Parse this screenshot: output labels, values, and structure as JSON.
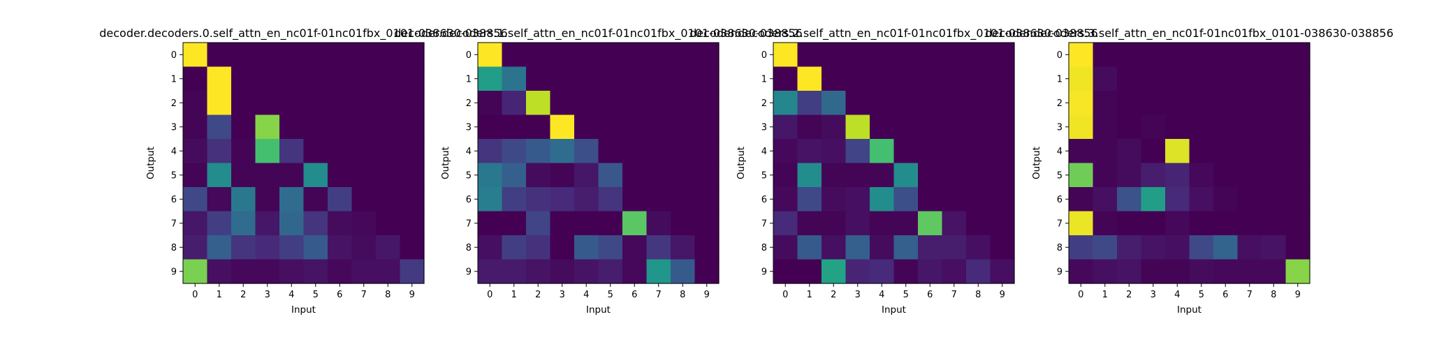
{
  "figure": {
    "background": "#ffffff",
    "colormap": "viridis"
  },
  "chart_data": [
    {
      "type": "heatmap",
      "title": "decoder.decoders.0.self_attn_en_nc01f-01nc01fbx_0101-038630-038856",
      "xlabel": "Input",
      "ylabel": "Output",
      "x_ticks": [
        "0",
        "1",
        "2",
        "3",
        "4",
        "5",
        "6",
        "7",
        "8",
        "9"
      ],
      "y_ticks": [
        "0",
        "1",
        "2",
        "3",
        "4",
        "5",
        "6",
        "7",
        "8",
        "9"
      ],
      "vmin": 0,
      "vmax": 1,
      "values": [
        [
          1.0,
          0.0,
          0.0,
          0.0,
          0.0,
          0.0,
          0.0,
          0.0,
          0.0,
          0.0
        ],
        [
          0.0,
          1.0,
          0.0,
          0.0,
          0.0,
          0.0,
          0.0,
          0.0,
          0.0,
          0.0
        ],
        [
          0.01,
          1.0,
          0.0,
          0.0,
          0.0,
          0.0,
          0.0,
          0.0,
          0.0,
          0.0
        ],
        [
          0.01,
          0.22,
          0.0,
          0.82,
          0.0,
          0.0,
          0.0,
          0.0,
          0.0,
          0.0
        ],
        [
          0.03,
          0.14,
          0.01,
          0.7,
          0.15,
          0.0,
          0.0,
          0.0,
          0.0,
          0.0
        ],
        [
          0.01,
          0.48,
          0.01,
          0.01,
          0.01,
          0.48,
          0.0,
          0.0,
          0.0,
          0.0
        ],
        [
          0.22,
          0.02,
          0.4,
          0.01,
          0.35,
          0.01,
          0.18,
          0.0,
          0.0,
          0.0
        ],
        [
          0.06,
          0.18,
          0.35,
          0.06,
          0.33,
          0.15,
          0.03,
          0.02,
          0.0,
          0.0
        ],
        [
          0.08,
          0.3,
          0.15,
          0.12,
          0.18,
          0.28,
          0.05,
          0.03,
          0.06,
          0.0
        ],
        [
          0.8,
          0.04,
          0.02,
          0.02,
          0.04,
          0.05,
          0.02,
          0.04,
          0.04,
          0.17
        ]
      ]
    },
    {
      "type": "heatmap",
      "title": "decoder.decoders.1.self_attn_en_nc01f-01nc01fbx_0101-038630-038856",
      "xlabel": "Input",
      "ylabel": "Output",
      "x_ticks": [
        "0",
        "1",
        "2",
        "3",
        "4",
        "5",
        "6",
        "7",
        "8",
        "9"
      ],
      "y_ticks": [
        "0",
        "1",
        "2",
        "3",
        "4",
        "5",
        "6",
        "7",
        "8",
        "9"
      ],
      "vmin": 0,
      "vmax": 1,
      "values": [
        [
          1.0,
          0.0,
          0.0,
          0.0,
          0.0,
          0.0,
          0.0,
          0.0,
          0.0,
          0.0
        ],
        [
          0.55,
          0.38,
          0.0,
          0.0,
          0.0,
          0.0,
          0.0,
          0.0,
          0.0,
          0.0
        ],
        [
          0.01,
          0.1,
          0.9,
          0.0,
          0.0,
          0.0,
          0.0,
          0.0,
          0.0,
          0.0
        ],
        [
          0.0,
          0.0,
          0.0,
          1.0,
          0.0,
          0.0,
          0.0,
          0.0,
          0.0,
          0.0
        ],
        [
          0.15,
          0.22,
          0.28,
          0.35,
          0.24,
          0.0,
          0.0,
          0.0,
          0.0,
          0.0
        ],
        [
          0.4,
          0.3,
          0.03,
          0.01,
          0.06,
          0.27,
          0.0,
          0.0,
          0.0,
          0.0
        ],
        [
          0.42,
          0.18,
          0.14,
          0.12,
          0.08,
          0.15,
          0.0,
          0.0,
          0.0,
          0.0
        ],
        [
          0.0,
          0.0,
          0.2,
          0.0,
          0.0,
          0.0,
          0.74,
          0.03,
          0.0,
          0.0
        ],
        [
          0.04,
          0.18,
          0.14,
          0.0,
          0.28,
          0.22,
          0.02,
          0.16,
          0.06,
          0.0
        ],
        [
          0.07,
          0.07,
          0.05,
          0.03,
          0.05,
          0.08,
          0.02,
          0.52,
          0.28,
          0.0
        ]
      ]
    },
    {
      "type": "heatmap",
      "title": "decoder.decoders.2.self_attn_en_nc01f-01nc01fbx_0101-038630-038856",
      "xlabel": "Input",
      "ylabel": "Output",
      "x_ticks": [
        "0",
        "1",
        "2",
        "3",
        "4",
        "5",
        "6",
        "7",
        "8",
        "9"
      ],
      "y_ticks": [
        "0",
        "1",
        "2",
        "3",
        "4",
        "5",
        "6",
        "7",
        "8",
        "9"
      ],
      "vmin": 0,
      "vmax": 1,
      "values": [
        [
          1.0,
          0.0,
          0.0,
          0.0,
          0.0,
          0.0,
          0.0,
          0.0,
          0.0,
          0.0
        ],
        [
          0.0,
          1.0,
          0.0,
          0.0,
          0.0,
          0.0,
          0.0,
          0.0,
          0.0,
          0.0
        ],
        [
          0.46,
          0.18,
          0.34,
          0.0,
          0.0,
          0.0,
          0.0,
          0.0,
          0.0,
          0.0
        ],
        [
          0.06,
          0.01,
          0.03,
          0.9,
          0.0,
          0.0,
          0.0,
          0.0,
          0.0,
          0.0
        ],
        [
          0.02,
          0.05,
          0.04,
          0.2,
          0.7,
          0.0,
          0.0,
          0.0,
          0.0,
          0.0
        ],
        [
          0.01,
          0.48,
          0.01,
          0.01,
          0.01,
          0.48,
          0.0,
          0.0,
          0.0,
          0.0
        ],
        [
          0.02,
          0.22,
          0.03,
          0.04,
          0.48,
          0.24,
          0.0,
          0.0,
          0.0,
          0.0
        ],
        [
          0.12,
          0.01,
          0.01,
          0.04,
          0.01,
          0.01,
          0.75,
          0.05,
          0.0,
          0.0
        ],
        [
          0.03,
          0.28,
          0.04,
          0.3,
          0.03,
          0.3,
          0.08,
          0.08,
          0.04,
          0.0
        ],
        [
          0.0,
          0.0,
          0.58,
          0.1,
          0.12,
          0.01,
          0.06,
          0.04,
          0.12,
          0.04
        ]
      ]
    },
    {
      "type": "heatmap",
      "title": "decoder.decoders.3.self_attn_en_nc01f-01nc01fbx_0101-038630-038856",
      "xlabel": "Input",
      "ylabel": "Output",
      "x_ticks": [
        "0",
        "1",
        "2",
        "3",
        "4",
        "5",
        "6",
        "7",
        "8",
        "9"
      ],
      "y_ticks": [
        "0",
        "1",
        "2",
        "3",
        "4",
        "5",
        "6",
        "7",
        "8",
        "9"
      ],
      "vmin": 0,
      "vmax": 1,
      "values": [
        [
          1.0,
          0.0,
          0.0,
          0.0,
          0.0,
          0.0,
          0.0,
          0.0,
          0.0,
          0.0
        ],
        [
          0.98,
          0.03,
          0.0,
          0.0,
          0.0,
          0.0,
          0.0,
          0.0,
          0.0,
          0.0
        ],
        [
          0.99,
          0.01,
          0.0,
          0.0,
          0.0,
          0.0,
          0.0,
          0.0,
          0.0,
          0.0
        ],
        [
          0.98,
          0.01,
          0.0,
          0.01,
          0.0,
          0.0,
          0.0,
          0.0,
          0.0,
          0.0
        ],
        [
          0.01,
          0.01,
          0.03,
          0.0,
          0.95,
          0.0,
          0.0,
          0.0,
          0.0,
          0.0
        ],
        [
          0.78,
          0.01,
          0.03,
          0.08,
          0.1,
          0.02,
          0.0,
          0.0,
          0.0,
          0.0
        ],
        [
          0.01,
          0.04,
          0.25,
          0.55,
          0.12,
          0.04,
          0.01,
          0.0,
          0.0,
          0.0
        ],
        [
          0.97,
          0.01,
          0.0,
          0.0,
          0.02,
          0.0,
          0.0,
          0.0,
          0.0,
          0.0
        ],
        [
          0.18,
          0.22,
          0.08,
          0.05,
          0.04,
          0.22,
          0.32,
          0.04,
          0.05,
          0.0
        ],
        [
          0.02,
          0.04,
          0.05,
          0.01,
          0.01,
          0.03,
          0.02,
          0.02,
          0.02,
          0.82
        ]
      ]
    }
  ]
}
